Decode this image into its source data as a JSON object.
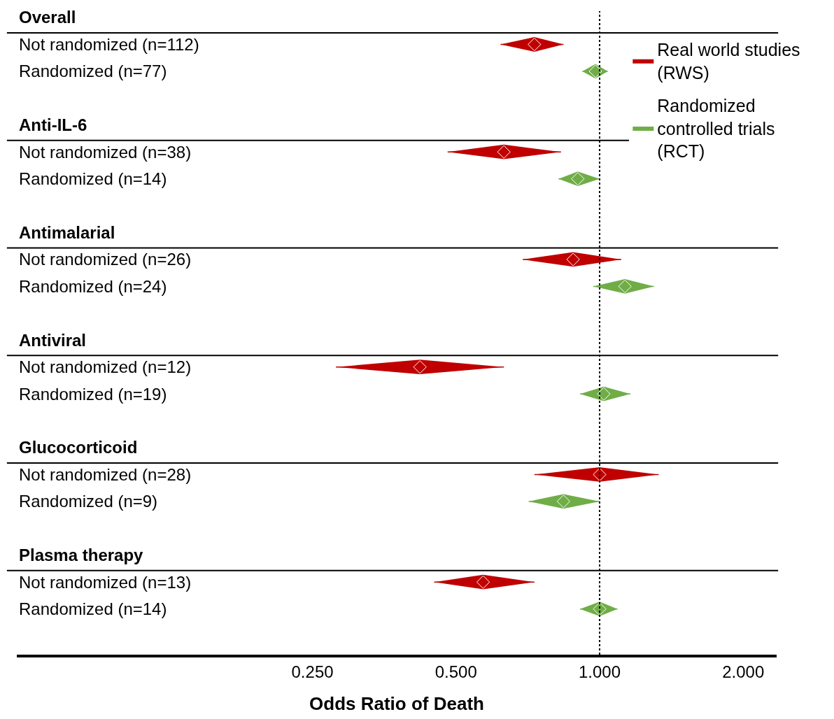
{
  "chart_data": {
    "type": "scatter",
    "marker": "diamond",
    "xlabel": "Odds Ratio of Death",
    "log": "x",
    "orientation": "horizontal",
    "legend": "top right",
    "categories": [
      "Overall",
      "Not randomized (n=112)",
      "Randomized (n=77)",
      "Anti-IL-6",
      "Not randomized (n=38)",
      "Randomized (n=14)",
      "Antimalarial",
      "Not randomized (n=26)",
      "Randomized (n=24)",
      "Antiviral",
      "Not randomized (n=12)",
      "Randomized (n=19)",
      "Glucocorticoid",
      "Not randomized (n=28)",
      "Randomized (n=9)",
      "Plasma therapy",
      "Not randomized (n=13)",
      "Randomized (n=14)"
    ],
    "xlim": [
      0.06,
      2.35
    ],
    "xticks": [
      {
        "value": 0.25,
        "label": "0.250"
      },
      {
        "value": 0.5,
        "label": "0.500"
      },
      {
        "value": 1,
        "label": "1.000"
      },
      {
        "value": 2,
        "label": "2.000"
      }
    ],
    "ref_lines": [
      {
        "axis": "x",
        "value": 1,
        "color": "#000000",
        "line_style": "dotted"
      }
    ],
    "series": [
      {
        "name": "Real world studies (RWS)",
        "color": "#c00000",
        "values": [
          null,
          0.73,
          null,
          null,
          0.63,
          null,
          null,
          0.88,
          null,
          null,
          0.42,
          null,
          null,
          1.0,
          null,
          null,
          0.57,
          null
        ],
        "errors": [
          null,
          [
            0.62,
            0.84
          ],
          null,
          null,
          [
            0.48,
            0.83
          ],
          null,
          null,
          [
            0.69,
            1.11
          ],
          null,
          null,
          [
            0.28,
            0.63
          ],
          null,
          null,
          [
            0.73,
            1.33
          ],
          null,
          null,
          [
            0.45,
            0.73
          ],
          null
        ]
      },
      {
        "name": "Randomized controlled trials (RCT)",
        "color": "#70ad47",
        "values": [
          null,
          null,
          0.98,
          null,
          null,
          0.9,
          null,
          null,
          1.13,
          null,
          null,
          1.02,
          null,
          null,
          0.84,
          null,
          null,
          1.0
        ],
        "errors": [
          null,
          null,
          [
            0.92,
            1.04
          ],
          null,
          null,
          [
            0.82,
            1.0
          ],
          null,
          null,
          [
            0.97,
            1.3
          ],
          null,
          null,
          [
            0.91,
            1.16
          ],
          null,
          null,
          [
            0.71,
            1.0
          ],
          null,
          null,
          [
            0.91,
            1.09
          ]
        ]
      }
    ]
  }
}
